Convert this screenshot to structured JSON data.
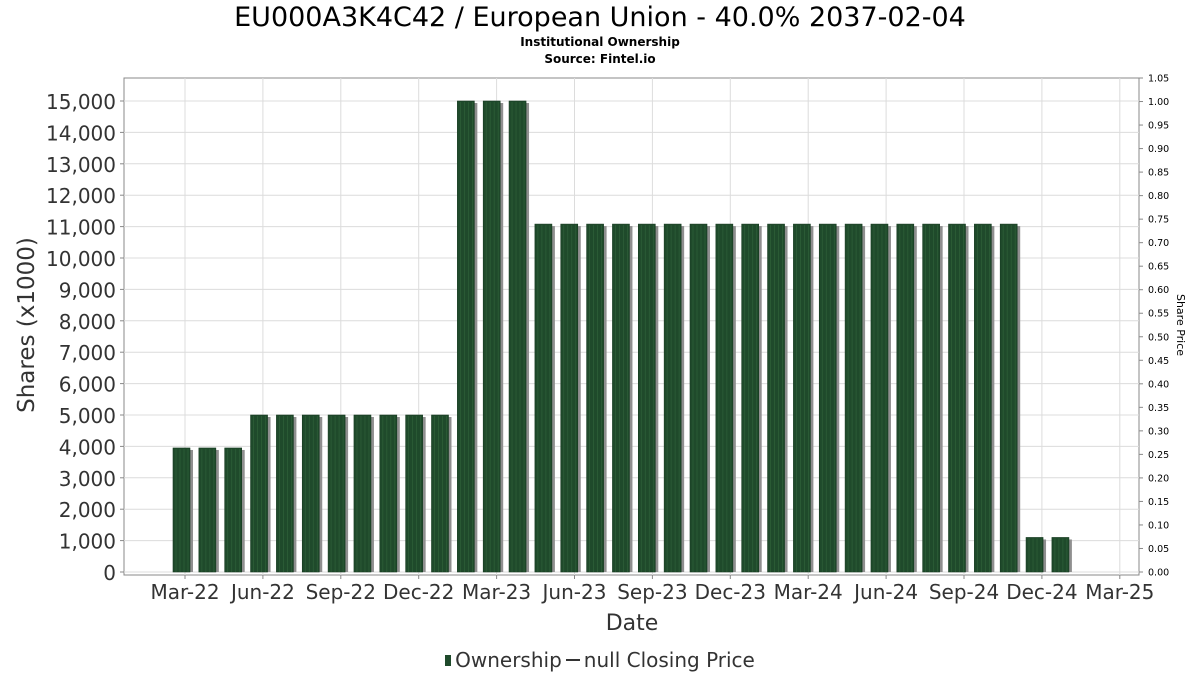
{
  "chart_data": {
    "type": "bar",
    "title": "EU000A3K4C42 / European Union - 40.0% 2037-02-04",
    "subtitle1": "Institutional Ownership",
    "subtitle2": "Source: Fintel.io",
    "xlabel": "Date",
    "ylabel": "Shares (x1000)",
    "y2label": "Share Price",
    "ylim": [
      0,
      15500
    ],
    "y2lim": [
      0,
      1.05
    ],
    "yticks": [
      "0",
      "1,000",
      "2,000",
      "3,000",
      "4,000",
      "5,000",
      "6,000",
      "7,000",
      "8,000",
      "9,000",
      "10,000",
      "11,000",
      "12,000",
      "13,000",
      "14,000",
      "15,000"
    ],
    "y2ticks": [
      "0.00",
      "0.05",
      "0.10",
      "0.15",
      "0.20",
      "0.25",
      "0.30",
      "0.35",
      "0.40",
      "0.45",
      "0.50",
      "0.55",
      "0.60",
      "0.65",
      "0.70",
      "0.75",
      "0.80",
      "0.85",
      "0.90",
      "0.95",
      "1.00",
      "1.05"
    ],
    "xticks": [
      "Mar-22",
      "Jun-22",
      "Sep-22",
      "Dec-22",
      "Mar-23",
      "Jun-23",
      "Sep-23",
      "Dec-23",
      "Mar-24",
      "Jun-24",
      "Sep-24",
      "Dec-24",
      "Mar-25"
    ],
    "grid": true,
    "legend_position": "bottom",
    "series": [
      {
        "name": "Ownership",
        "color": "#1f4a2b",
        "values": [
          3950,
          3950,
          3950,
          5000,
          5000,
          5000,
          5000,
          5000,
          5000,
          5000,
          5000,
          15000,
          15000,
          15000,
          11080,
          11080,
          11080,
          11080,
          11080,
          11080,
          11080,
          11080,
          11080,
          11080,
          11080,
          11080,
          11080,
          11080,
          11080,
          11080,
          11080,
          11080,
          11080,
          1100,
          1100
        ]
      },
      {
        "name": "null Closing Price",
        "color": "#333333",
        "values": []
      }
    ]
  },
  "legend": {
    "ownership_label": "Ownership",
    "price_label": "null Closing Price"
  }
}
